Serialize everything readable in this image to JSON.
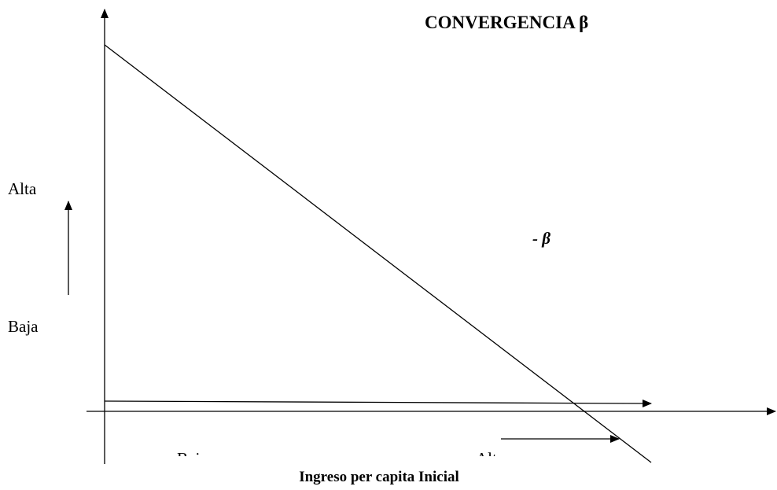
{
  "title": "CONVERGENCIA β",
  "y_labels": {
    "high": "Alta",
    "low": "Baja"
  },
  "slope_label": "- β",
  "x_labels": {
    "low": "Bajo",
    "high": "Alto"
  },
  "x_axis_title": "Ingreso per capita Inicial"
}
